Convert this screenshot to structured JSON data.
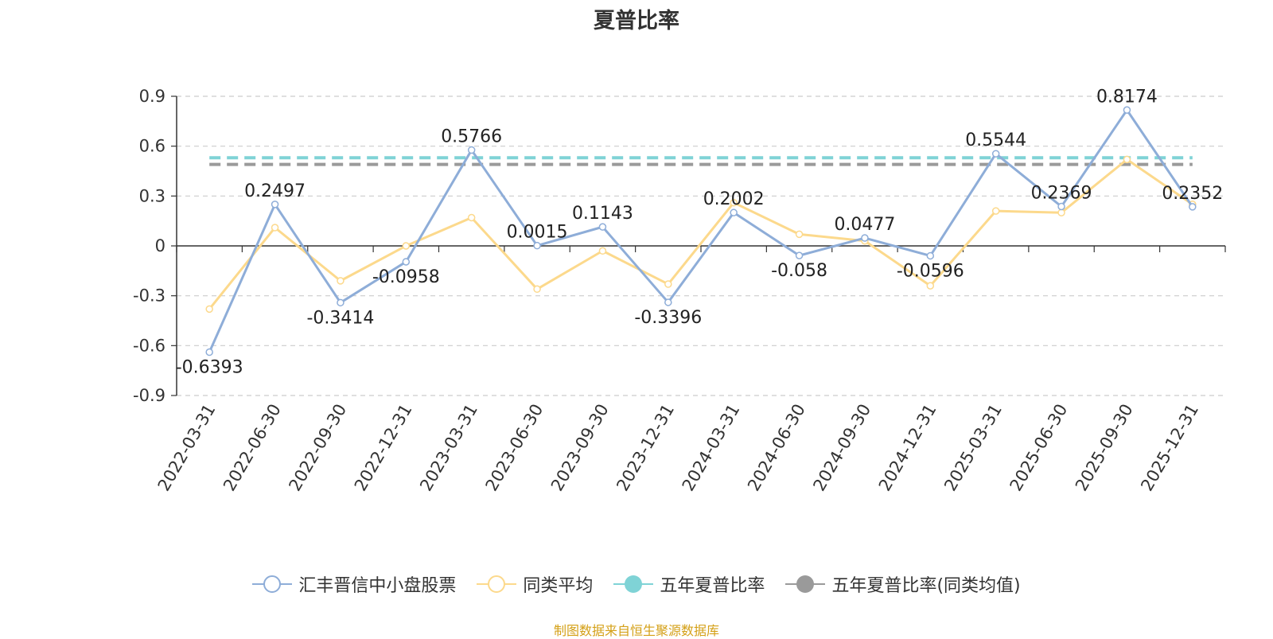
{
  "chart_data": {
    "type": "line",
    "title": "夏普比率",
    "categories": [
      "2022-03-31",
      "2022-06-30",
      "2022-09-30",
      "2022-12-31",
      "2023-03-31",
      "2023-06-30",
      "2023-09-30",
      "2023-12-31",
      "2024-03-31",
      "2024-06-30",
      "2024-09-30",
      "2024-12-31",
      "2025-03-31",
      "2025-06-30",
      "2025-09-30",
      "2025-12-31"
    ],
    "ylim": [
      -0.9,
      0.9
    ],
    "yticks": [
      0.9,
      0.6,
      0.3,
      0,
      -0.3,
      -0.6,
      -0.9
    ],
    "grid": true,
    "legend_position": "bottom",
    "series": [
      {
        "name": "汇丰晋信中小盘股票",
        "color": "#8eadd8",
        "values": [
          -0.6393,
          0.2497,
          -0.3414,
          -0.0958,
          0.5766,
          0.0015,
          0.1143,
          -0.3396,
          0.2002,
          -0.058,
          0.0477,
          -0.0596,
          0.5544,
          0.2369,
          0.8174,
          0.2352
        ],
        "labels": [
          "-0.6393",
          "0.2497",
          "-0.3414",
          "-0.0958",
          "0.5766",
          "0.0015",
          "0.1143",
          "-0.3396",
          "0.2002",
          "-0.058",
          "0.0477",
          "-0.0596",
          "0.5544",
          "0.2369",
          "0.8174",
          "0.2352"
        ]
      },
      {
        "name": "同类平均",
        "color": "#fcd98c",
        "values": [
          -0.38,
          0.11,
          -0.21,
          0.0,
          0.17,
          -0.26,
          -0.03,
          -0.23,
          0.26,
          0.07,
          0.03,
          -0.24,
          0.21,
          0.2,
          0.52,
          0.25
        ]
      },
      {
        "name": "五年夏普比率",
        "color": "#7fd3d6",
        "constant": 0.53
      },
      {
        "name": "五年夏普比率(同类均值)",
        "color": "#9a9a9a",
        "constant": 0.49
      }
    ]
  },
  "source": "制图数据来自恒生聚源数据库"
}
